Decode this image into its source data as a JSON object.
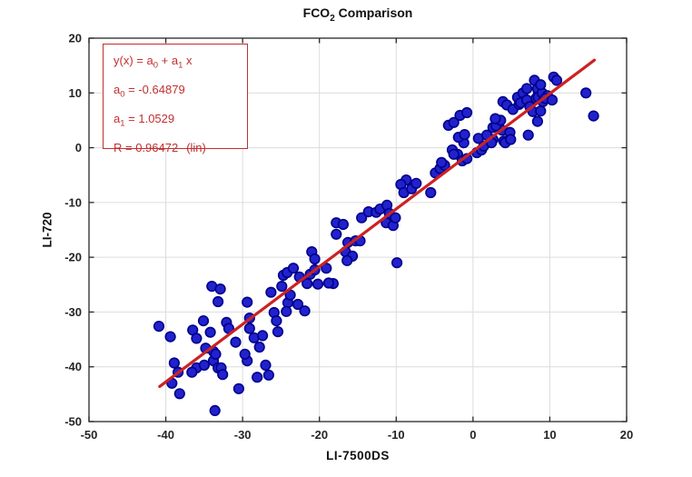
{
  "title": {
    "prefix": "FCO",
    "subscript": "2",
    "suffix": " Comparison"
  },
  "annotation": {
    "eq_p1": "y(x) = a",
    "eq_s1": "0",
    "eq_p2": " + a",
    "eq_s2": "1",
    "eq_p3": " x",
    "a0_p1": "a",
    "a0_s1": "0",
    "a0_p2": " = -0.64879",
    "a1_p1": "a",
    "a1_s1": "1",
    "a1_p2": " = 1.0529",
    "r_value": "R = 0.96472",
    "r_suffix": "(lin)"
  },
  "colors": {
    "marker_fill": "#2222cc",
    "marker_edge": "#00008b",
    "fit_line": "#cc2222",
    "annotation_red": "#c03030",
    "grid": "#dcdcdc",
    "axis": "#262626",
    "tick_label": "#252525",
    "background": "#ffffff"
  },
  "chart_data": {
    "type": "scatter",
    "title": "FCO_2 Comparison",
    "xlabel": "LI-7500DS",
    "ylabel": "LI-720",
    "xlim": [
      -50,
      20
    ],
    "ylim": [
      -50,
      20
    ],
    "xticks": [
      -50,
      -40,
      -30,
      -20,
      -10,
      0,
      10,
      20
    ],
    "yticks": [
      -50,
      -40,
      -30,
      -20,
      -10,
      0,
      10,
      20
    ],
    "grid": true,
    "legend": "none",
    "fit_line": {
      "a0": -0.64879,
      "a1": 1.0529,
      "r": 0.96472,
      "x_start": -40.8,
      "x_end": 15.8
    },
    "points": [
      [
        -40.9,
        -32.6
      ],
      [
        -39.4,
        -34.5
      ],
      [
        -38.9,
        -39.3
      ],
      [
        -39.2,
        -43.0
      ],
      [
        -38.2,
        -44.9
      ],
      [
        -38.4,
        -41.0
      ],
      [
        -36.5,
        -33.3
      ],
      [
        -36.0,
        -34.8
      ],
      [
        -36.0,
        -40.2
      ],
      [
        -36.6,
        -41.0
      ],
      [
        -35.1,
        -31.6
      ],
      [
        -35.0,
        -39.7
      ],
      [
        -34.2,
        -33.7
      ],
      [
        -34.8,
        -36.6
      ],
      [
        -33.8,
        -37.2
      ],
      [
        -33.8,
        -38.9
      ],
      [
        -33.5,
        -37.7
      ],
      [
        -33.2,
        -40.2
      ],
      [
        -32.8,
        -40.2
      ],
      [
        -32.6,
        -41.4
      ],
      [
        -32.1,
        -31.9
      ],
      [
        -31.8,
        -33.0
      ],
      [
        -30.9,
        -35.5
      ],
      [
        -33.6,
        -48.0
      ],
      [
        -30.5,
        -44.0
      ],
      [
        -34.0,
        -25.3
      ],
      [
        -32.9,
        -25.8
      ],
      [
        -33.2,
        -28.1
      ],
      [
        -29.4,
        -28.2
      ],
      [
        -29.4,
        -38.9
      ],
      [
        -29.7,
        -37.7
      ],
      [
        -28.1,
        -41.9
      ],
      [
        -29.1,
        -31.1
      ],
      [
        -29.1,
        -33.0
      ],
      [
        -28.5,
        -34.7
      ],
      [
        -27.8,
        -36.4
      ],
      [
        -27.4,
        -34.3
      ],
      [
        -27.0,
        -39.7
      ],
      [
        -26.6,
        -41.5
      ],
      [
        -25.9,
        -30.1
      ],
      [
        -25.4,
        -33.6
      ],
      [
        -24.1,
        -28.3
      ],
      [
        -26.3,
        -26.4
      ],
      [
        -24.9,
        -25.3
      ],
      [
        -23.8,
        -26.9
      ],
      [
        -22.8,
        -28.6
      ],
      [
        -24.3,
        -29.9
      ],
      [
        -21.9,
        -29.8
      ],
      [
        -25.6,
        -31.6
      ],
      [
        -24.7,
        -23.3
      ],
      [
        -24.2,
        -22.8
      ],
      [
        -23.4,
        -22.0
      ],
      [
        -22.6,
        -23.6
      ],
      [
        -21.6,
        -24.8
      ],
      [
        -21.2,
        -23.1
      ],
      [
        -20.6,
        -22.3
      ],
      [
        -20.2,
        -24.9
      ],
      [
        -19.1,
        -22.0
      ],
      [
        -18.2,
        -24.8
      ],
      [
        -21.0,
        -19.0
      ],
      [
        -20.6,
        -20.3
      ],
      [
        -18.8,
        -24.7
      ],
      [
        -17.8,
        -13.7
      ],
      [
        -16.9,
        -14.0
      ],
      [
        -17.8,
        -15.8
      ],
      [
        -16.3,
        -17.3
      ],
      [
        -15.3,
        -17.0
      ],
      [
        -16.6,
        -19.0
      ],
      [
        -15.7,
        -19.8
      ],
      [
        -16.4,
        -20.6
      ],
      [
        -14.7,
        -17.0
      ],
      [
        -14.5,
        -12.8
      ],
      [
        -13.6,
        -11.7
      ],
      [
        -12.6,
        -11.8
      ],
      [
        -12.1,
        -11.2
      ],
      [
        -11.2,
        -10.5
      ],
      [
        -11.3,
        -13.7
      ],
      [
        -10.9,
        -12.0
      ],
      [
        -10.4,
        -14.2
      ],
      [
        -10.1,
        -12.8
      ],
      [
        -9.9,
        -21.0
      ],
      [
        -8.7,
        -5.9
      ],
      [
        -9.4,
        -6.7
      ],
      [
        -9.0,
        -8.2
      ],
      [
        -8.0,
        -7.5
      ],
      [
        -7.4,
        -6.5
      ],
      [
        -5.5,
        -8.2
      ],
      [
        -4.9,
        -4.6
      ],
      [
        -4.3,
        -3.8
      ],
      [
        -3.7,
        -3.2
      ],
      [
        -4.1,
        -2.7
      ],
      [
        -2.7,
        -0.4
      ],
      [
        -2.0,
        -1.2
      ],
      [
        -1.4,
        -2.4
      ],
      [
        -0.8,
        -2.0
      ],
      [
        -2.5,
        -1.2
      ],
      [
        -1.2,
        0.9
      ],
      [
        -1.9,
        1.9
      ],
      [
        -1.1,
        2.4
      ],
      [
        0.5,
        -0.9
      ],
      [
        1.1,
        -0.4
      ],
      [
        1.4,
        0.3
      ],
      [
        2.6,
        1.5
      ],
      [
        4.0,
        1.2
      ],
      [
        -3.2,
        4.1
      ],
      [
        -2.5,
        4.6
      ],
      [
        -1.7,
        5.9
      ],
      [
        -0.8,
        6.4
      ],
      [
        0.7,
        1.7
      ],
      [
        2.4,
        0.9
      ],
      [
        1.8,
        2.3
      ],
      [
        2.6,
        3.7
      ],
      [
        3.2,
        4.0
      ],
      [
        3.8,
        3.2
      ],
      [
        4.2,
        0.9
      ],
      [
        4.8,
        2.8
      ],
      [
        4.9,
        1.5
      ],
      [
        3.0,
        4.0
      ],
      [
        3.6,
        5.0
      ],
      [
        2.9,
        5.3
      ],
      [
        3.9,
        8.4
      ],
      [
        4.4,
        7.8
      ],
      [
        5.2,
        7.0
      ],
      [
        6.0,
        7.9
      ],
      [
        5.8,
        9.2
      ],
      [
        6.2,
        8.2
      ],
      [
        6.5,
        10.0
      ],
      [
        7.0,
        10.8
      ],
      [
        7.0,
        8.7
      ],
      [
        7.4,
        7.5
      ],
      [
        7.8,
        6.6
      ],
      [
        8.2,
        9.0
      ],
      [
        8.5,
        10.3
      ],
      [
        8.0,
        12.3
      ],
      [
        8.4,
        10.8
      ],
      [
        8.4,
        4.8
      ],
      [
        7.2,
        2.3
      ],
      [
        8.5,
        9.2
      ],
      [
        9.0,
        10.0
      ],
      [
        9.1,
        8.4
      ],
      [
        9.7,
        9.5
      ],
      [
        10.5,
        12.9
      ],
      [
        10.9,
        12.3
      ],
      [
        8.8,
        11.5
      ],
      [
        9.4,
        9.0
      ],
      [
        10.3,
        8.7
      ],
      [
        8.8,
        6.7
      ],
      [
        14.7,
        10.0
      ],
      [
        15.7,
        5.8
      ]
    ]
  }
}
